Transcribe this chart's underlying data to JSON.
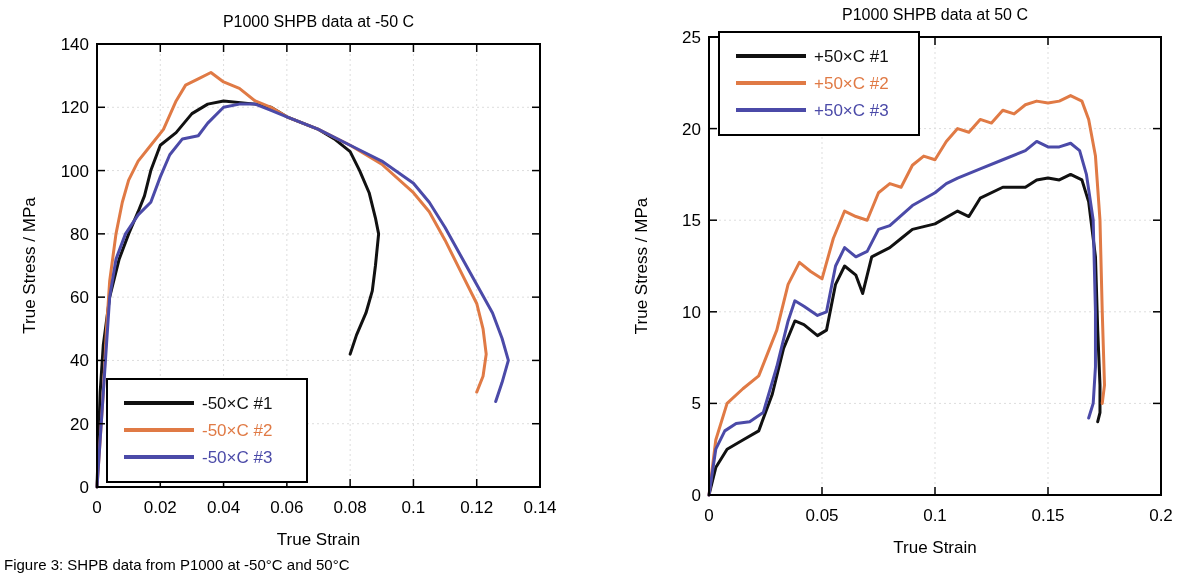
{
  "chart_data": [
    {
      "type": "line",
      "title": "P1000 SHPB data at -50 C",
      "xlabel": "True Strain",
      "ylabel": "True Stress / MPa",
      "xlim": [
        0,
        0.14
      ],
      "xticks": [
        0,
        0.02,
        0.04,
        0.06,
        0.08,
        0.1,
        0.12,
        0.14
      ],
      "ylim": [
        0,
        140
      ],
      "yticks": [
        0,
        20,
        40,
        60,
        80,
        100,
        120,
        140
      ],
      "grid": true,
      "legend": "bottom left",
      "annotations": [
        "Figure 3: SHPB data from P1000 at -50°C and 50°C"
      ],
      "series": [
        {
          "name": "-50×C #1",
          "color": "#111111",
          "x": [
            0,
            0.0005,
            0.001,
            0.002,
            0.004,
            0.007,
            0.01,
            0.013,
            0.015,
            0.017,
            0.02,
            0.025,
            0.03,
            0.035,
            0.04,
            0.05,
            0.055,
            0.06,
            0.07,
            0.075,
            0.08,
            0.083,
            0.086,
            0.088,
            0.089,
            0.088,
            0.087,
            0.085,
            0.082,
            0.08
          ],
          "values": [
            0,
            15,
            30,
            45,
            60,
            72,
            80,
            87,
            92,
            100,
            108,
            112,
            118,
            121,
            122,
            121,
            120,
            117,
            113,
            110,
            106,
            100,
            93,
            85,
            80,
            70,
            62,
            55,
            48,
            42
          ]
        },
        {
          "name": "-50×C #2",
          "color": "#e07a45",
          "x": [
            0,
            0.002,
            0.003,
            0.004,
            0.006,
            0.008,
            0.01,
            0.013,
            0.017,
            0.021,
            0.025,
            0.028,
            0.032,
            0.036,
            0.04,
            0.045,
            0.05,
            0.055,
            0.06,
            0.07,
            0.08,
            0.09,
            0.1,
            0.105,
            0.11,
            0.115,
            0.12,
            0.122,
            0.123,
            0.122,
            0.12
          ],
          "values": [
            0,
            30,
            50,
            65,
            80,
            90,
            97,
            103,
            108,
            113,
            122,
            127,
            129,
            131,
            128,
            126,
            122,
            120,
            117,
            113,
            108,
            102,
            93,
            87,
            78,
            68,
            58,
            50,
            42,
            35,
            30
          ]
        },
        {
          "name": "-50×C #3",
          "color": "#4b4aa8",
          "x": [
            0,
            0.002,
            0.003,
            0.004,
            0.006,
            0.009,
            0.013,
            0.017,
            0.02,
            0.023,
            0.027,
            0.032,
            0.035,
            0.04,
            0.045,
            0.05,
            0.055,
            0.06,
            0.07,
            0.08,
            0.09,
            0.1,
            0.105,
            0.11,
            0.115,
            0.12,
            0.125,
            0.128,
            0.13,
            0.128,
            0.126
          ],
          "values": [
            0,
            30,
            45,
            60,
            72,
            80,
            86,
            90,
            98,
            105,
            110,
            111,
            115,
            120,
            121,
            121,
            119,
            117,
            113,
            108,
            103,
            96,
            90,
            82,
            73,
            64,
            55,
            47,
            40,
            33,
            27
          ]
        }
      ]
    },
    {
      "type": "line",
      "title": "P1000 SHPB data at 50 C",
      "xlabel": "True Strain",
      "ylabel": "True Stress / MPa",
      "xlim": [
        0,
        0.2
      ],
      "xticks": [
        0,
        0.05,
        0.1,
        0.15,
        0.2
      ],
      "ylim": [
        0,
        25
      ],
      "yticks": [
        0,
        5,
        10,
        15,
        20,
        25
      ],
      "grid": true,
      "legend": "top left",
      "series": [
        {
          "name": "+50×C #1",
          "color": "#111111",
          "x": [
            0,
            0.003,
            0.008,
            0.015,
            0.022,
            0.028,
            0.033,
            0.038,
            0.042,
            0.048,
            0.052,
            0.056,
            0.06,
            0.065,
            0.068,
            0.072,
            0.08,
            0.085,
            0.09,
            0.1,
            0.11,
            0.115,
            0.12,
            0.13,
            0.14,
            0.145,
            0.15,
            0.155,
            0.16,
            0.165,
            0.168,
            0.171,
            0.172,
            0.173,
            0.173,
            0.172
          ],
          "values": [
            0,
            1.5,
            2.5,
            3,
            3.5,
            5.5,
            8,
            9.5,
            9.3,
            8.7,
            9,
            11.5,
            12.5,
            12,
            11,
            13,
            13.5,
            14,
            14.5,
            14.8,
            15.5,
            15.2,
            16.2,
            16.8,
            16.8,
            17.2,
            17.3,
            17.2,
            17.5,
            17.2,
            16,
            13,
            9,
            6,
            4.5,
            4
          ]
        },
        {
          "name": "+50×C #2",
          "color": "#e07a45",
          "x": [
            0,
            0.003,
            0.008,
            0.015,
            0.022,
            0.03,
            0.035,
            0.04,
            0.045,
            0.05,
            0.055,
            0.06,
            0.065,
            0.07,
            0.075,
            0.08,
            0.085,
            0.09,
            0.095,
            0.1,
            0.105,
            0.11,
            0.115,
            0.12,
            0.125,
            0.13,
            0.135,
            0.14,
            0.145,
            0.15,
            0.155,
            0.16,
            0.165,
            0.168,
            0.171,
            0.173,
            0.174,
            0.175,
            0.174
          ],
          "values": [
            0,
            3,
            5,
            5.8,
            6.5,
            9,
            11.5,
            12.7,
            12.2,
            11.8,
            14,
            15.5,
            15.2,
            15,
            16.5,
            17,
            16.8,
            18,
            18.5,
            18.3,
            19.3,
            20,
            19.8,
            20.5,
            20.3,
            21,
            20.8,
            21.3,
            21.5,
            21.4,
            21.5,
            21.8,
            21.5,
            20.5,
            18.5,
            15,
            10,
            6,
            5
          ]
        },
        {
          "name": "+50×C #3",
          "color": "#4b4aa8",
          "x": [
            0,
            0.003,
            0.007,
            0.012,
            0.018,
            0.024,
            0.03,
            0.035,
            0.038,
            0.042,
            0.048,
            0.052,
            0.056,
            0.06,
            0.065,
            0.07,
            0.075,
            0.08,
            0.09,
            0.1,
            0.105,
            0.11,
            0.12,
            0.13,
            0.14,
            0.145,
            0.15,
            0.155,
            0.16,
            0.164,
            0.167,
            0.17,
            0.171,
            0.171,
            0.17,
            0.168
          ],
          "values": [
            0,
            2.5,
            3.5,
            3.9,
            4,
            4.5,
            7,
            9.5,
            10.6,
            10.3,
            9.8,
            10,
            12.5,
            13.5,
            13,
            13.3,
            14.5,
            14.7,
            15.8,
            16.5,
            17,
            17.3,
            17.8,
            18.3,
            18.8,
            19.3,
            19,
            19,
            19.2,
            18.8,
            17.5,
            15,
            10,
            7,
            5,
            4.2
          ]
        }
      ]
    }
  ]
}
